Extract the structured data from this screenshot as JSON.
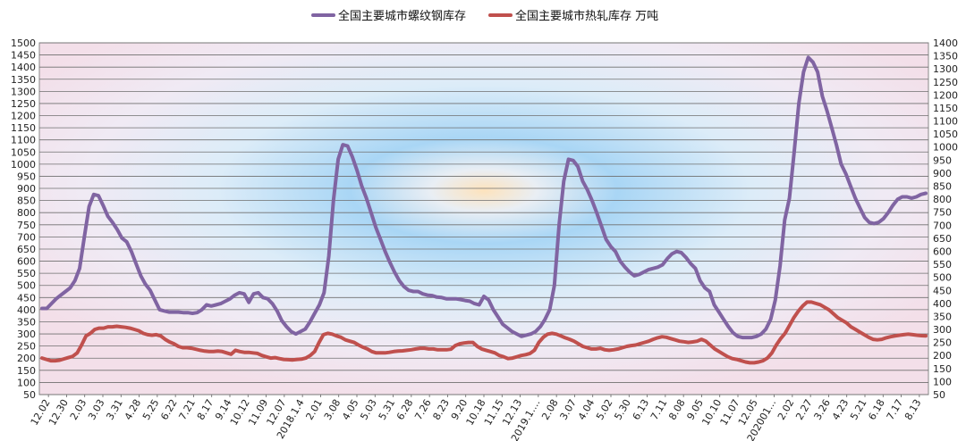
{
  "chart_data": {
    "type": "line",
    "legend_position": "top",
    "grid": true,
    "y_left": {
      "min": 50,
      "max": 1500,
      "step": 50
    },
    "y_right": {
      "min": 50,
      "max": 1400,
      "step": 50
    },
    "x_labels": [
      "12.02",
      "12.30",
      "2.03",
      "3.03",
      "3.31",
      "4.28",
      "5.25",
      "6.22",
      "7.21",
      "8.17",
      "9.14",
      "10.12",
      "11.09",
      "12.07",
      "2018.1.4",
      "2.01",
      "3.08",
      "4.05",
      "5.03",
      "5.31",
      "6.28",
      "7.26",
      "8.23",
      "9.20",
      "10.18",
      "11.15",
      "12.13",
      "2019.1....",
      "2.08",
      "3.07",
      "4.04",
      "5.02",
      "5.30",
      "6.13",
      "7.11",
      "8.08",
      "9.05",
      "10.10",
      "11.07",
      "12.05",
      "202001...",
      "2.02",
      "2.27",
      "3.26",
      "4.23",
      "5.21",
      "6.18",
      "7.17",
      "8.13"
    ],
    "series": [
      {
        "name": "全国主要城市螺纹钢库存",
        "axis": "left",
        "color": "#8064A2",
        "values": [
          405,
          405,
          425,
          445,
          460,
          475,
          490,
          520,
          570,
          700,
          825,
          875,
          870,
          830,
          785,
          760,
          730,
          695,
          680,
          640,
          590,
          540,
          505,
          480,
          440,
          400,
          395,
          390,
          390,
          390,
          388,
          388,
          385,
          388,
          400,
          420,
          415,
          420,
          425,
          435,
          445,
          460,
          470,
          465,
          430,
          465,
          470,
          450,
          445,
          425,
          395,
          355,
          330,
          310,
          300,
          310,
          320,
          350,
          385,
          420,
          470,
          620,
          850,
          1020,
          1080,
          1075,
          1030,
          975,
          910,
          860,
          800,
          740,
          690,
          640,
          595,
          555,
          520,
          495,
          480,
          475,
          475,
          465,
          460,
          458,
          452,
          450,
          445,
          445,
          445,
          442,
          438,
          435,
          425,
          420,
          455,
          440,
          400,
          370,
          340,
          325,
          310,
          300,
          290,
          295,
          300,
          310,
          330,
          360,
          400,
          500,
          750,
          930,
          1020,
          1015,
          990,
          930,
          895,
          850,
          800,
          745,
          690,
          660,
          640,
          600,
          575,
          555,
          540,
          545,
          555,
          565,
          570,
          575,
          585,
          610,
          630,
          640,
          635,
          615,
          590,
          570,
          520,
          490,
          475,
          420,
          390,
          360,
          330,
          305,
          290,
          285,
          285,
          285,
          290,
          300,
          320,
          360,
          440,
          580,
          770,
          860,
          1050,
          1250,
          1380,
          1440,
          1420,
          1380,
          1280,
          1220,
          1150,
          1080,
          1000,
          960,
          910,
          860,
          820,
          780,
          760,
          755,
          760,
          775,
          800,
          830,
          855,
          865,
          865,
          860,
          865,
          875,
          880
        ]
      },
      {
        "name": "全国主要城市热轧库存 万吨",
        "axis": "right",
        "color": "#C0504D",
        "values": [
          190,
          185,
          180,
          180,
          182,
          187,
          192,
          197,
          210,
          240,
          275,
          285,
          300,
          305,
          305,
          310,
          310,
          312,
          310,
          308,
          305,
          300,
          295,
          285,
          280,
          278,
          280,
          275,
          262,
          252,
          245,
          235,
          230,
          230,
          228,
          224,
          220,
          217,
          215,
          215,
          217,
          215,
          210,
          205,
          220,
          215,
          212,
          212,
          210,
          208,
          200,
          195,
          190,
          192,
          188,
          185,
          184,
          183,
          185,
          186,
          190,
          200,
          215,
          250,
          280,
          285,
          282,
          275,
          270,
          260,
          255,
          250,
          240,
          232,
          225,
          215,
          210,
          210,
          210,
          212,
          215,
          217,
          218,
          220,
          222,
          225,
          228,
          228,
          225,
          225,
          222,
          222,
          222,
          224,
          238,
          245,
          248,
          250,
          250,
          235,
          225,
          220,
          215,
          210,
          200,
          195,
          188,
          190,
          195,
          200,
          203,
          208,
          220,
          250,
          270,
          282,
          285,
          282,
          275,
          268,
          262,
          255,
          245,
          235,
          230,
          225,
          225,
          228,
          222,
          220,
          222,
          225,
          230,
          235,
          238,
          240,
          245,
          250,
          255,
          262,
          268,
          272,
          270,
          265,
          260,
          255,
          253,
          250,
          252,
          255,
          262,
          255,
          240,
          225,
          215,
          205,
          195,
          188,
          185,
          180,
          175,
          172,
          172,
          175,
          180,
          190,
          210,
          240,
          265,
          285,
          315,
          345,
          370,
          390,
          405,
          405,
          400,
          395,
          385,
          375,
          360,
          345,
          335,
          325,
          310,
          300,
          290,
          280,
          270,
          262,
          260,
          262,
          268,
          272,
          275,
          278,
          280,
          282,
          280,
          278,
          276,
          275
        ]
      }
    ]
  }
}
